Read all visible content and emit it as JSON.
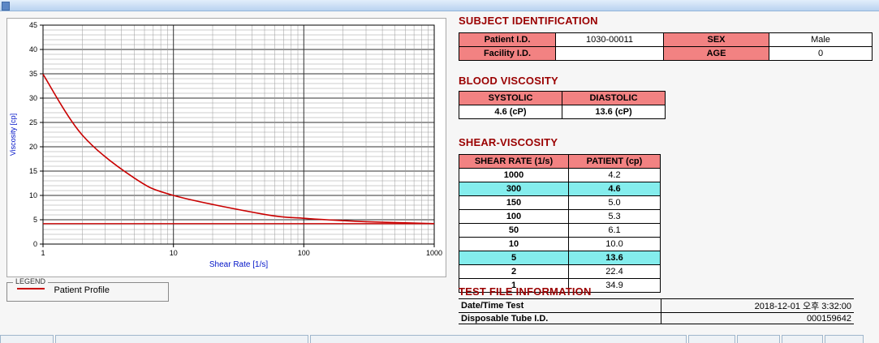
{
  "chart_data": {
    "type": "line",
    "title": "",
    "xlabel": "Shear Rate [1/s]",
    "ylabel": "Viscosity [cp]",
    "x_scale": "log",
    "xlim": [
      1,
      1000
    ],
    "ylim": [
      0,
      45
    ],
    "x_ticks": [
      1,
      10,
      100,
      1000
    ],
    "y_ticks": [
      0,
      5,
      10,
      15,
      20,
      25,
      30,
      35,
      40,
      45
    ],
    "grid": true,
    "reference_line_y": 4.2,
    "series": [
      {
        "name": "Patient Profile",
        "color": "#c90000",
        "x": [
          1,
          2,
          5,
          10,
          50,
          100,
          150,
          300,
          1000
        ],
        "y": [
          34.9,
          22.4,
          13.6,
          10.0,
          6.1,
          5.3,
          5.0,
          4.6,
          4.2
        ]
      }
    ]
  },
  "legend": {
    "title": "LEGEND",
    "series_label": "Patient Profile"
  },
  "subject_identification": {
    "title": "SUBJECT IDENTIFICATION",
    "rows": [
      {
        "label1": "Patient I.D.",
        "value1": "1030-00011",
        "label2": "SEX",
        "value2": "Male"
      },
      {
        "label1": "Facility I.D.",
        "value1": "",
        "label2": "AGE",
        "value2": "0"
      }
    ]
  },
  "blood_viscosity": {
    "title": "BLOOD VISCOSITY",
    "headers": [
      "SYSTOLIC",
      "DIASTOLIC"
    ],
    "values": [
      "4.6 (cP)",
      "13.6 (cP)"
    ]
  },
  "shear_viscosity": {
    "title": "SHEAR-VISCOSITY",
    "headers": [
      "SHEAR RATE (1/s)",
      "PATIENT (cp)"
    ],
    "rows": [
      {
        "rate": "1000",
        "value": "4.2",
        "highlight": false
      },
      {
        "rate": "300",
        "value": "4.6",
        "highlight": true
      },
      {
        "rate": "150",
        "value": "5.0",
        "highlight": false
      },
      {
        "rate": "100",
        "value": "5.3",
        "highlight": false
      },
      {
        "rate": "50",
        "value": "6.1",
        "highlight": false
      },
      {
        "rate": "10",
        "value": "10.0",
        "highlight": false
      },
      {
        "rate": "5",
        "value": "13.6",
        "highlight": true
      },
      {
        "rate": "2",
        "value": "22.4",
        "highlight": false
      },
      {
        "rate": "1",
        "value": "34.9",
        "highlight": false
      }
    ]
  },
  "test_file_information": {
    "title": "TEST FILE INFORMATION",
    "rows": [
      {
        "label": "Date/Time Test",
        "value": "2018-12-01  오후 3:32:00"
      },
      {
        "label": "Disposable Tube I.D.",
        "value": "000159642"
      }
    ]
  }
}
